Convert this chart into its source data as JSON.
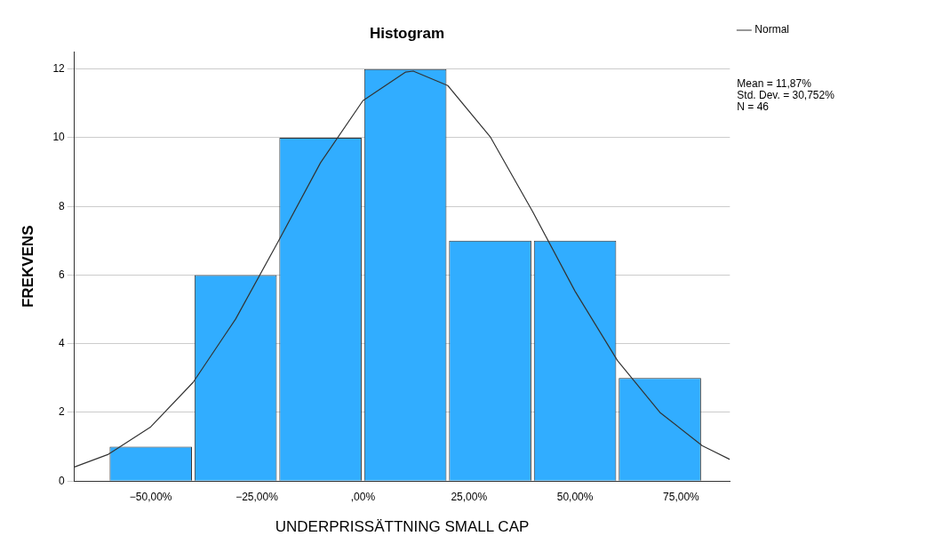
{
  "chart_data": {
    "type": "histogram",
    "title": "Histogram",
    "xlabel": "UNDERPRISSÄTTNING SMALL CAP",
    "ylabel": "FREKVENS",
    "bins": [
      -60,
      -40,
      -20,
      0,
      20,
      40,
      60,
      80
    ],
    "values": [
      1,
      6,
      10,
      12,
      7,
      7,
      3
    ],
    "color": "#31adff",
    "series": [
      {
        "type": "line",
        "name": "Normal",
        "color": "#333333",
        "marker": "none",
        "x": [
          -68,
          -60,
          -50,
          -40,
          -30,
          -20,
          -10,
          0,
          10,
          11.87,
          20,
          30,
          40,
          50,
          60,
          70,
          80,
          86.5
        ],
        "values": [
          0.41,
          0.78,
          1.58,
          2.88,
          4.72,
          6.97,
          9.27,
          11.08,
          11.91,
          11.94,
          11.52,
          10.03,
          7.85,
          5.53,
          3.51,
          2.0,
          1.03,
          0.63
        ]
      }
    ],
    "xlim": [
      -68,
      86.5
    ],
    "ylim": [
      0,
      12.5
    ],
    "xticks": [
      {
        "value": -50,
        "label": "−50,00%"
      },
      {
        "value": -25,
        "label": "−25,00%"
      },
      {
        "value": 0,
        "label": ",00%"
      },
      {
        "value": 25,
        "label": "25,00%"
      },
      {
        "value": 50,
        "label": "50,00%"
      },
      {
        "value": 75,
        "label": "75,00%"
      }
    ],
    "yticks": [
      0,
      2,
      4,
      6,
      8,
      10,
      12
    ],
    "grid": "y",
    "legend": "top right",
    "annotations": [
      "Mean = 11,87%",
      "Std. Dev. = 30,752%",
      "N = 46"
    ]
  }
}
